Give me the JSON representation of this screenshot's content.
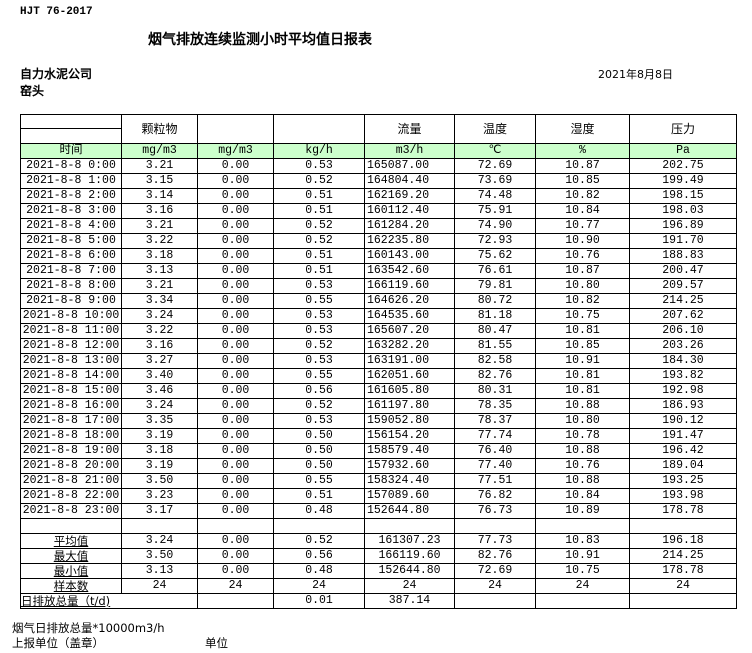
{
  "standard": "HJT  76-2017",
  "title": "烟气排放连续监测小时平均值日报表",
  "company": "自力水泥公司",
  "location": "窑头",
  "date": "2021年8月8日",
  "header": {
    "row1": [
      "",
      "颗粒物",
      "",
      "",
      "流量",
      "温度",
      "湿度",
      "压力"
    ],
    "row2": [
      "时间",
      "mg/m3",
      "mg/m3",
      "kg/h",
      "m3/h",
      "℃",
      "%",
      "Pa"
    ]
  },
  "header_color": "#ccffcc",
  "rows": [
    [
      "2021-8-8 0:00",
      "3.21",
      "0.00",
      "0.53",
      "165087.00",
      "72.69",
      "10.87",
      "202.75"
    ],
    [
      "2021-8-8 1:00",
      "3.15",
      "0.00",
      "0.52",
      "164804.40",
      "73.69",
      "10.85",
      "199.49"
    ],
    [
      "2021-8-8 2:00",
      "3.14",
      "0.00",
      "0.51",
      "162169.20",
      "74.48",
      "10.82",
      "198.15"
    ],
    [
      "2021-8-8 3:00",
      "3.16",
      "0.00",
      "0.51",
      "160112.40",
      "75.91",
      "10.84",
      "198.03"
    ],
    [
      "2021-8-8 4:00",
      "3.21",
      "0.00",
      "0.52",
      "161284.20",
      "74.90",
      "10.77",
      "196.89"
    ],
    [
      "2021-8-8 5:00",
      "3.22",
      "0.00",
      "0.52",
      "162235.80",
      "72.93",
      "10.90",
      "191.70"
    ],
    [
      "2021-8-8 6:00",
      "3.18",
      "0.00",
      "0.51",
      "160143.00",
      "75.62",
      "10.76",
      "188.83"
    ],
    [
      "2021-8-8 7:00",
      "3.13",
      "0.00",
      "0.51",
      "163542.60",
      "76.61",
      "10.87",
      "200.47"
    ],
    [
      "2021-8-8 8:00",
      "3.21",
      "0.00",
      "0.53",
      "166119.60",
      "79.81",
      "10.80",
      "209.57"
    ],
    [
      "2021-8-8 9:00",
      "3.34",
      "0.00",
      "0.55",
      "164626.20",
      "80.72",
      "10.82",
      "214.25"
    ],
    [
      "2021-8-8 10:00",
      "3.24",
      "0.00",
      "0.53",
      "164535.60",
      "81.18",
      "10.75",
      "207.62"
    ],
    [
      "2021-8-8 11:00",
      "3.22",
      "0.00",
      "0.53",
      "165607.20",
      "80.47",
      "10.81",
      "206.10"
    ],
    [
      "2021-8-8 12:00",
      "3.16",
      "0.00",
      "0.52",
      "163282.20",
      "81.55",
      "10.85",
      "203.26"
    ],
    [
      "2021-8-8 13:00",
      "3.27",
      "0.00",
      "0.53",
      "163191.00",
      "82.58",
      "10.91",
      "184.30"
    ],
    [
      "2021-8-8 14:00",
      "3.40",
      "0.00",
      "0.55",
      "162051.60",
      "82.76",
      "10.81",
      "193.82"
    ],
    [
      "2021-8-8 15:00",
      "3.46",
      "0.00",
      "0.56",
      "161605.80",
      "80.31",
      "10.81",
      "192.98"
    ],
    [
      "2021-8-8 16:00",
      "3.24",
      "0.00",
      "0.52",
      "161197.80",
      "78.35",
      "10.88",
      "186.93"
    ],
    [
      "2021-8-8 17:00",
      "3.35",
      "0.00",
      "0.53",
      "159052.80",
      "78.37",
      "10.80",
      "190.12"
    ],
    [
      "2021-8-8 18:00",
      "3.19",
      "0.00",
      "0.50",
      "156154.20",
      "77.74",
      "10.78",
      "191.47"
    ],
    [
      "2021-8-8 19:00",
      "3.18",
      "0.00",
      "0.50",
      "158579.40",
      "76.40",
      "10.88",
      "196.42"
    ],
    [
      "2021-8-8 20:00",
      "3.19",
      "0.00",
      "0.50",
      "157932.60",
      "77.40",
      "10.76",
      "189.04"
    ],
    [
      "2021-8-8 21:00",
      "3.50",
      "0.00",
      "0.55",
      "158324.40",
      "77.51",
      "10.88",
      "193.25"
    ],
    [
      "2021-8-8 22:00",
      "3.23",
      "0.00",
      "0.51",
      "157089.60",
      "76.82",
      "10.84",
      "193.98"
    ],
    [
      "2021-8-8 23:00",
      "3.17",
      "0.00",
      "0.48",
      "152644.80",
      "76.73",
      "10.89",
      "178.78"
    ]
  ],
  "summary": [
    [
      "平均值",
      "3.24",
      "0.00",
      "0.52",
      "161307.23",
      "77.73",
      "10.83",
      "196.18"
    ],
    [
      "最大值",
      "3.50",
      "0.00",
      "0.56",
      "166119.60",
      "82.76",
      "10.91",
      "214.25"
    ],
    [
      "最小值",
      "3.13",
      "0.00",
      "0.48",
      "152644.80",
      "72.69",
      "10.75",
      "178.78"
    ],
    [
      "样本数",
      "24",
      "24",
      "24",
      "24",
      "24",
      "24",
      "24"
    ]
  ],
  "daily_total": {
    "label": "日排放总量（t/d)",
    "values": [
      "",
      "0.01",
      "387.14",
      "",
      "",
      ""
    ]
  },
  "footer": {
    "note": "烟气日排放总量*10000m3/h",
    "report_unit": "上报单位（盖章）",
    "unit": "单位"
  }
}
